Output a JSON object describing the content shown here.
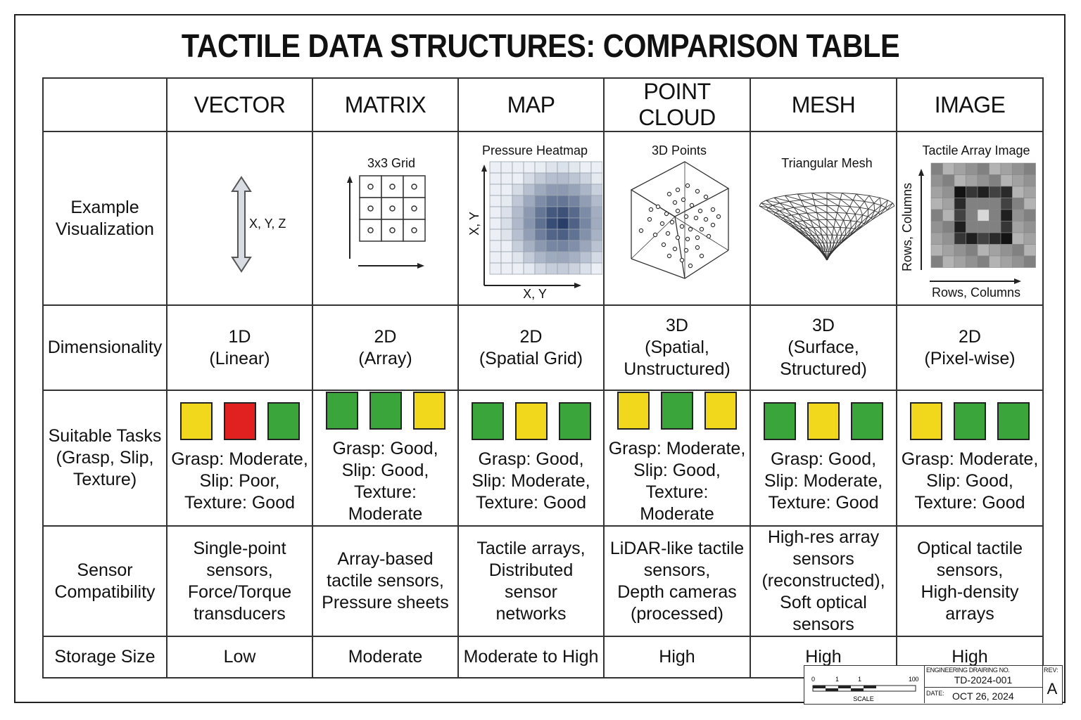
{
  "title": "TACTILE DATA STRUCTURES: COMPARISON TABLE",
  "columns": [
    "VECTOR",
    "MATRIX",
    "MAP",
    "POINT CLOUD",
    "MESH",
    "IMAGE"
  ],
  "row_labels": {
    "visualization": [
      "Example",
      "Visualization"
    ],
    "dimensionality": [
      "Dimensionality"
    ],
    "tasks": [
      "Suitable Tasks",
      "(Grasp, Slip,",
      "Texture)"
    ],
    "sensor": [
      "Sensor",
      "Compatibility"
    ],
    "storage": [
      "Storage Size"
    ]
  },
  "visualizations": {
    "vector": {
      "axis_label": "X, Y, Z"
    },
    "matrix": {
      "title": "3x3 Grid"
    },
    "map": {
      "title": "Pressure Heatmap",
      "y_label": "X, Y",
      "x_label": "X, Y"
    },
    "point_cloud": {
      "title": "3D Points"
    },
    "mesh": {
      "title": "Triangular Mesh"
    },
    "image": {
      "title": "Tactile Array Image",
      "y_label": "Rows, Columns",
      "x_label": "Rows, Columns"
    }
  },
  "dimensionality": [
    [
      "1D",
      "(Linear)"
    ],
    [
      "2D",
      "(Array)"
    ],
    [
      "2D",
      "(Spatial Grid)"
    ],
    [
      "3D",
      "(Spatial,",
      "Unstructured)"
    ],
    [
      "3D",
      "(Surface,",
      "Structured)"
    ],
    [
      "2D",
      "(Pixel-wise)"
    ]
  ],
  "task_colors": {
    "good": "#3aa53a",
    "moderate": "#f2d81c",
    "poor": "#e0211f"
  },
  "tasks": [
    {
      "ratings": [
        "moderate",
        "poor",
        "good"
      ],
      "lines": [
        "Grasp: Moderate,",
        "Slip: Poor,",
        "Texture: Good"
      ]
    },
    {
      "ratings": [
        "good",
        "good",
        "moderate"
      ],
      "lines": [
        "Grasp: Good,",
        "Slip: Good,",
        "Texture: Moderate"
      ]
    },
    {
      "ratings": [
        "good",
        "moderate",
        "good"
      ],
      "lines": [
        "Grasp: Good,",
        "Slip: Moderate,",
        "Texture: Good"
      ]
    },
    {
      "ratings": [
        "moderate",
        "good",
        "moderate"
      ],
      "lines": [
        "Grasp: Moderate,",
        "Slip: Good,",
        "Texture: Moderate"
      ]
    },
    {
      "ratings": [
        "good",
        "moderate",
        "good"
      ],
      "lines": [
        "Grasp: Good,",
        "Slip: Moderate,",
        "Texture: Good"
      ]
    },
    {
      "ratings": [
        "moderate",
        "good",
        "good"
      ],
      "lines": [
        "Grasp: Moderate,",
        "Slip: Good,",
        "Texture: Good"
      ]
    }
  ],
  "sensor": [
    [
      "Single-point",
      "sensors,",
      "Force/Torque",
      "transducers"
    ],
    [
      "Array-based",
      "tactile sensors,",
      "Pressure sheets"
    ],
    [
      "Tactile arrays,",
      "Distributed sensor",
      "networks"
    ],
    [
      "LiDAR-like tactile",
      "sensors,",
      "Depth cameras",
      "(processed)"
    ],
    [
      "High-res array",
      "sensors",
      "(reconstructed),",
      "Soft optical sensors"
    ],
    [
      "Optical tactile",
      "sensors,",
      "High-density arrays"
    ]
  ],
  "storage": [
    "Low",
    "Moderate",
    "Moderate to High",
    "High",
    "High",
    "High"
  ],
  "title_block": {
    "drawing_label": "ENGINEERING DRAIRING NO.",
    "drawing_no": "TD-2024-001",
    "date_label": "DATE:",
    "date": "OCT 26, 2024",
    "rev_label": "REV:",
    "rev": "A",
    "scale_label": "SCALE",
    "scale_ticks": [
      "0",
      "1",
      "1",
      "100"
    ]
  }
}
